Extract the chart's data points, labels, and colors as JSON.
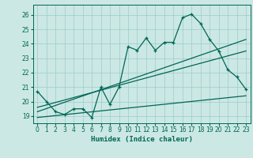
{
  "xlabel": "Humidex (Indice chaleur)",
  "background_color": "#cce8e4",
  "grid_color": "#99cccc",
  "line_color": "#006655",
  "xlim": [
    -0.5,
    23.5
  ],
  "ylim": [
    18.5,
    26.7
  ],
  "xticks": [
    0,
    1,
    2,
    3,
    4,
    5,
    6,
    7,
    8,
    9,
    10,
    11,
    12,
    13,
    14,
    15,
    16,
    17,
    18,
    19,
    20,
    21,
    22,
    23
  ],
  "yticks": [
    19,
    20,
    21,
    22,
    23,
    24,
    25,
    26
  ],
  "line1_x": [
    0,
    1,
    2,
    3,
    4,
    5,
    6,
    7,
    8,
    9,
    10,
    11,
    12,
    13,
    14,
    15,
    16,
    17,
    18,
    19,
    20,
    21,
    22,
    23
  ],
  "line1_y": [
    20.7,
    20.0,
    19.3,
    19.1,
    19.5,
    19.5,
    18.9,
    21.0,
    19.8,
    21.0,
    23.8,
    23.55,
    24.4,
    23.55,
    24.1,
    24.1,
    25.8,
    26.05,
    25.4,
    24.3,
    23.5,
    22.2,
    21.7,
    20.85
  ],
  "line2_x": [
    0,
    23
  ],
  "line2_y": [
    19.3,
    24.3
  ],
  "line3_x": [
    0,
    23
  ],
  "line3_y": [
    19.6,
    23.5
  ],
  "line4_x": [
    0,
    23
  ],
  "line4_y": [
    18.9,
    20.4
  ]
}
